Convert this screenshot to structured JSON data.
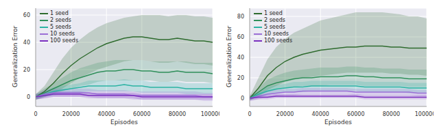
{
  "chart_data": [
    {
      "type": "line",
      "x_label": "Episodes",
      "y_label": "Generalization Error",
      "grid": true,
      "legend": "upper left",
      "xlim": [
        0,
        100000
      ],
      "xticks": [
        0,
        20000,
        40000,
        60000,
        80000,
        100000
      ],
      "ylim": [
        -7,
        65
      ],
      "yticks": [
        0,
        20,
        40,
        60
      ],
      "x": [
        0,
        5000,
        10000,
        15000,
        20000,
        25000,
        30000,
        35000,
        40000,
        45000,
        50000,
        55000,
        60000,
        65000,
        70000,
        75000,
        80000,
        85000,
        90000,
        95000,
        100000
      ],
      "series": [
        {
          "name": "1 seed",
          "color": "#2e6b2e",
          "values": [
            0,
            4,
            10,
            17,
            23,
            28,
            32,
            36,
            39,
            41,
            43,
            44,
            44,
            43,
            42,
            42,
            43,
            42,
            41,
            41,
            40
          ],
          "lower": [
            -2,
            0,
            2,
            6,
            10,
            14,
            17,
            20,
            22,
            24,
            26,
            27,
            27,
            26,
            25,
            25,
            26,
            25,
            24,
            24,
            23
          ],
          "upper": [
            2,
            8,
            18,
            28,
            36,
            42,
            47,
            51,
            54,
            56,
            58,
            59,
            60,
            60,
            60,
            59,
            60,
            60,
            59,
            59,
            58
          ]
        },
        {
          "name": "2 seeds",
          "color": "#2f8f5a",
          "values": [
            0,
            3,
            6,
            9,
            12,
            14,
            16,
            18,
            19,
            19,
            20,
            20,
            19,
            19,
            18,
            18,
            19,
            18,
            18,
            18,
            17
          ],
          "lower": [
            -2,
            0,
            2,
            4,
            6,
            8,
            9,
            11,
            12,
            12,
            12,
            12,
            12,
            12,
            11,
            11,
            12,
            11,
            11,
            11,
            10
          ],
          "upper": [
            2,
            6,
            10,
            14,
            18,
            21,
            23,
            25,
            26,
            27,
            27,
            27,
            27,
            26,
            26,
            26,
            26,
            26,
            25,
            25,
            25
          ]
        },
        {
          "name": "5 seeds",
          "color": "#2bb3a3",
          "values": [
            0,
            2,
            4,
            5,
            6,
            7,
            8,
            8,
            8,
            8,
            9,
            8,
            8,
            7,
            7,
            7,
            7,
            6,
            6,
            6,
            6
          ],
          "lower": [
            -2,
            0,
            1,
            2,
            3,
            3,
            4,
            4,
            4,
            4,
            4,
            4,
            3,
            3,
            3,
            3,
            3,
            2,
            2,
            2,
            2
          ],
          "upper": [
            2,
            4,
            7,
            8,
            9,
            10,
            12,
            12,
            12,
            12,
            13,
            12,
            12,
            11,
            11,
            11,
            11,
            10,
            10,
            10,
            10
          ]
        },
        {
          "name": "10 seeds",
          "color": "#9b6fd6",
          "values": [
            0,
            2,
            3,
            3,
            3,
            3,
            3,
            2,
            2,
            2,
            2,
            1,
            1,
            1,
            1,
            1,
            1,
            1,
            1,
            0,
            0
          ],
          "lower": [
            -2,
            -1,
            0,
            0,
            0,
            0,
            0,
            -1,
            -1,
            -1,
            -1,
            -2,
            -2,
            -2,
            -2,
            -2,
            -2,
            -2,
            -2,
            -3,
            -3
          ],
          "upper": [
            2,
            5,
            6,
            6,
            6,
            6,
            6,
            5,
            5,
            5,
            5,
            4,
            4,
            4,
            4,
            4,
            4,
            4,
            4,
            3,
            3
          ]
        },
        {
          "name": "100 seeds",
          "color": "#7a2fbf",
          "values": [
            0,
            1,
            2,
            2,
            2,
            2,
            1,
            1,
            1,
            1,
            1,
            1,
            0,
            0,
            0,
            0,
            0,
            0,
            0,
            0,
            0
          ],
          "lower": [
            -2,
            -1,
            0,
            0,
            0,
            0,
            -1,
            -1,
            -1,
            -1,
            -1,
            -1,
            -2,
            -2,
            -2,
            -2,
            -2,
            -2,
            -2,
            -2,
            -2
          ],
          "upper": [
            2,
            3,
            4,
            4,
            4,
            4,
            3,
            3,
            3,
            3,
            3,
            3,
            2,
            2,
            2,
            2,
            2,
            2,
            2,
            2,
            2
          ]
        }
      ]
    },
    {
      "type": "line",
      "x_label": "Episodes",
      "y_label": "Generalization Error",
      "grid": true,
      "legend": "upper left",
      "xlim": [
        0,
        100000
      ],
      "xticks": [
        0,
        20000,
        40000,
        60000,
        80000,
        100000
      ],
      "ylim": [
        -8,
        88
      ],
      "yticks": [
        0,
        20,
        40,
        60,
        80
      ],
      "x": [
        0,
        5000,
        10000,
        15000,
        20000,
        25000,
        30000,
        35000,
        40000,
        45000,
        50000,
        55000,
        60000,
        65000,
        70000,
        75000,
        80000,
        85000,
        90000,
        95000,
        100000
      ],
      "series": [
        {
          "name": "1 seed",
          "color": "#2e6b2e",
          "values": [
            0,
            10,
            22,
            30,
            36,
            40,
            43,
            45,
            47,
            48,
            49,
            50,
            50,
            51,
            51,
            51,
            50,
            50,
            49,
            49,
            49
          ],
          "lower": [
            -2,
            2,
            8,
            12,
            16,
            18,
            20,
            21,
            22,
            23,
            24,
            25,
            25,
            25,
            25,
            25,
            24,
            24,
            23,
            23,
            22
          ],
          "upper": [
            2,
            20,
            38,
            50,
            58,
            64,
            68,
            72,
            76,
            78,
            80,
            82,
            84,
            84,
            84,
            84,
            83,
            82,
            80,
            80,
            78
          ]
        },
        {
          "name": "2 seeds",
          "color": "#2f8f5a",
          "values": [
            0,
            6,
            12,
            15,
            17,
            19,
            20,
            20,
            21,
            21,
            21,
            22,
            22,
            21,
            21,
            20,
            20,
            20,
            19,
            19,
            19
          ],
          "lower": [
            -2,
            2,
            6,
            8,
            10,
            11,
            12,
            12,
            12,
            13,
            13,
            13,
            13,
            12,
            12,
            12,
            12,
            12,
            11,
            11,
            11
          ],
          "upper": [
            2,
            10,
            18,
            22,
            25,
            27,
            28,
            29,
            30,
            30,
            30,
            31,
            31,
            30,
            30,
            29,
            29,
            29,
            28,
            28,
            28
          ]
        },
        {
          "name": "5 seeds",
          "color": "#2bb3a3",
          "values": [
            0,
            4,
            7,
            9,
            10,
            11,
            11,
            12,
            12,
            12,
            12,
            12,
            12,
            11,
            11,
            11,
            11,
            11,
            10,
            10,
            10
          ],
          "lower": [
            -2,
            1,
            3,
            5,
            6,
            6,
            6,
            7,
            7,
            7,
            7,
            7,
            7,
            6,
            6,
            6,
            6,
            6,
            5,
            5,
            5
          ],
          "upper": [
            2,
            7,
            11,
            13,
            14,
            16,
            16,
            17,
            17,
            17,
            17,
            17,
            17,
            16,
            16,
            16,
            16,
            16,
            15,
            15,
            15
          ]
        },
        {
          "name": "10 seeds",
          "color": "#9b6fd6",
          "values": [
            0,
            2,
            4,
            5,
            6,
            6,
            7,
            7,
            7,
            7,
            7,
            7,
            6,
            6,
            6,
            6,
            6,
            6,
            6,
            5,
            5
          ],
          "lower": [
            -3,
            -1,
            1,
            2,
            3,
            3,
            4,
            4,
            4,
            4,
            4,
            4,
            3,
            3,
            3,
            3,
            3,
            3,
            3,
            2,
            2
          ],
          "upper": [
            3,
            5,
            7,
            8,
            9,
            9,
            10,
            10,
            10,
            10,
            10,
            10,
            9,
            9,
            9,
            9,
            9,
            9,
            9,
            8,
            8
          ]
        },
        {
          "name": "100 seeds",
          "color": "#7a2fbf",
          "values": [
            0,
            1,
            1,
            2,
            2,
            2,
            2,
            2,
            2,
            2,
            2,
            2,
            2,
            1,
            1,
            1,
            1,
            1,
            1,
            1,
            1
          ],
          "lower": [
            -2,
            -1,
            -1,
            0,
            0,
            0,
            0,
            0,
            0,
            0,
            0,
            0,
            0,
            -1,
            -1,
            -1,
            -1,
            -1,
            -1,
            -1,
            -1
          ],
          "upper": [
            2,
            3,
            3,
            4,
            4,
            4,
            4,
            4,
            4,
            4,
            4,
            4,
            4,
            3,
            3,
            3,
            3,
            3,
            3,
            3,
            3
          ]
        }
      ]
    }
  ]
}
